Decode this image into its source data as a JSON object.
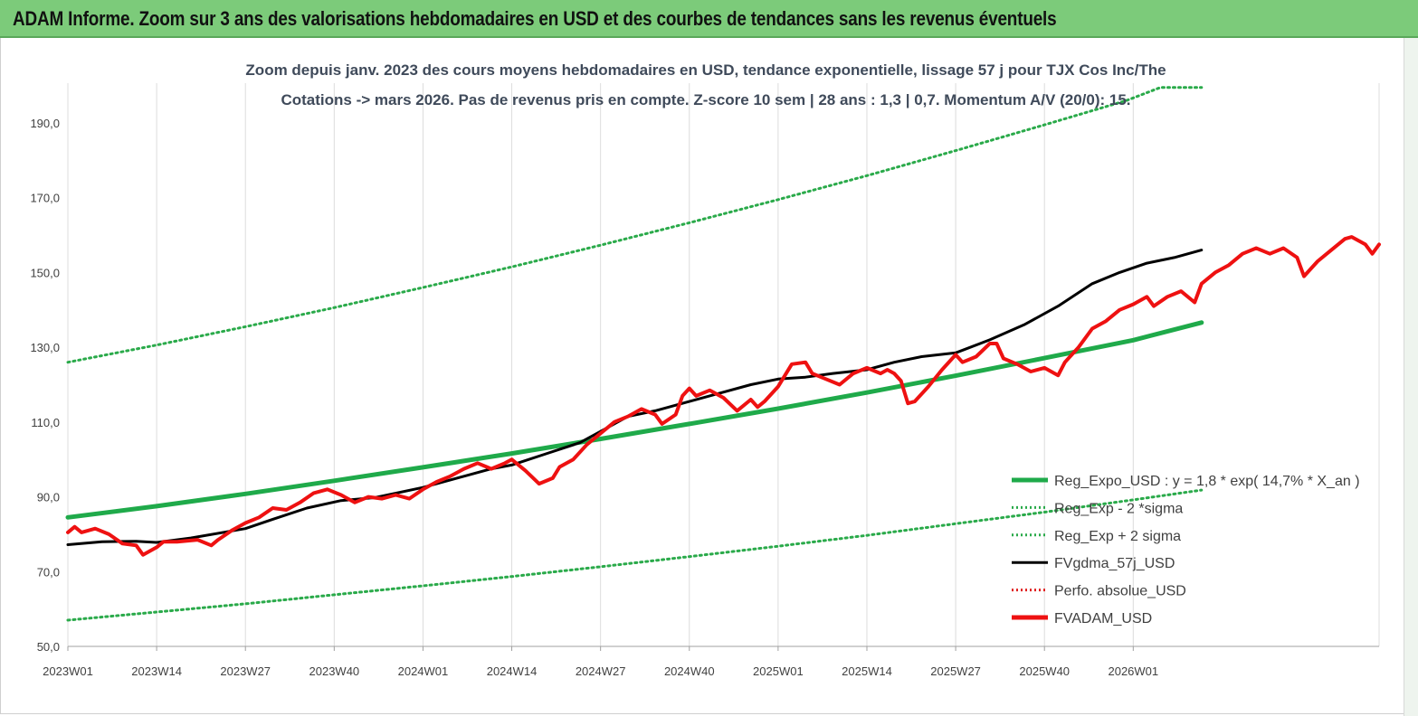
{
  "banner": {
    "title": "ADAM Informe. Zoom sur 3 ans des valorisations hebdomadaires en USD et des courbes de tendances sans les revenus éventuels"
  },
  "colors": {
    "banner_bg": "#7ccb7a",
    "reg_expo": "#1faa4a",
    "reg_band": "#2aaa4a",
    "fv57": "#000000",
    "perf": "#e02020",
    "fvadam": "#ee1111",
    "grid": "#dcdcdc"
  },
  "chart_data": {
    "type": "line",
    "title_lines": [
      "Zoom depuis janv. 2023 des cours moyens hebdomadaires en USD, tendance exponentielle, lissage 57 j pour TJX Cos Inc/The",
      "Cotations -> mars 2026. Pas de revenus pris en compte. Z-score 10 sem  | 28 ans : 1,3 | 0,7. Momentum A/V (20/0): 15."
    ],
    "x_tick_labels": [
      "2023W01",
      "2023W14",
      "2023W27",
      "2023W40",
      "2024W01",
      "2024W14",
      "2024W27",
      "2024W40",
      "2025W01",
      "2025W14",
      "2025W27",
      "2025W40",
      "2026W01"
    ],
    "y_tick_labels": [
      "50,0",
      "70,0",
      "90,0",
      "110,0",
      "130,0",
      "150,0",
      "170,0",
      "190,0"
    ],
    "ylim": [
      50,
      199
    ],
    "grid": "vertical",
    "legend_position": "right",
    "legend": [
      {
        "name": "Reg_Expo_USD : y = 1,8 * exp( 14,7% *  X_an )",
        "style": "thick-solid",
        "color": "#1faa4a"
      },
      {
        "name": "Reg_Exp - 2 *sigma",
        "style": "dotted",
        "color": "#2aaa4a"
      },
      {
        "name": "Reg_Exp + 2 sigma",
        "style": "dotted",
        "color": "#2aaa4a"
      },
      {
        "name": "FVgdma_57j_USD",
        "style": "solid",
        "color": "#000000"
      },
      {
        "name": "Perfo. absolue_USD",
        "style": "dotted",
        "color": "#e02020"
      },
      {
        "name": "FVADAM_USD",
        "style": "thick-solid",
        "color": "#ee1111"
      }
    ],
    "series": [
      {
        "name": "Reg_Expo_USD : y = 1,8 * exp( 14,7% *  X_an )",
        "points": [
          [
            0,
            84.5
          ],
          [
            13,
            87.5
          ],
          [
            26,
            90.8
          ],
          [
            39,
            94.3
          ],
          [
            52,
            97.9
          ],
          [
            65,
            101.6
          ],
          [
            78,
            105.5
          ],
          [
            91,
            109.5
          ],
          [
            104,
            113.6
          ],
          [
            117,
            117.9
          ],
          [
            130,
            122.4
          ],
          [
            143,
            127.1
          ],
          [
            156,
            131.9
          ],
          [
            166,
            136.6
          ]
        ]
      },
      {
        "name": "Reg_Exp - 2 *sigma",
        "points": [
          [
            0,
            57
          ],
          [
            13,
            59.2
          ],
          [
            26,
            61.4
          ],
          [
            39,
            63.8
          ],
          [
            52,
            66.2
          ],
          [
            65,
            68.7
          ],
          [
            78,
            71.3
          ],
          [
            91,
            74.0
          ],
          [
            104,
            76.8
          ],
          [
            117,
            79.7
          ],
          [
            130,
            82.8
          ],
          [
            143,
            85.9
          ],
          [
            156,
            89.2
          ],
          [
            166,
            91.8
          ]
        ]
      },
      {
        "name": "Reg_Exp + 2 sigma",
        "points": [
          [
            0,
            126
          ],
          [
            13,
            130.6
          ],
          [
            26,
            135.5
          ],
          [
            39,
            140.6
          ],
          [
            52,
            146.0
          ],
          [
            65,
            151.5
          ],
          [
            78,
            157.3
          ],
          [
            91,
            163.3
          ],
          [
            104,
            169.5
          ],
          [
            117,
            175.9
          ],
          [
            130,
            182.6
          ],
          [
            143,
            189.5
          ],
          [
            155,
            196
          ],
          [
            160,
            199.5
          ],
          [
            166,
            199.5
          ]
        ]
      },
      {
        "name": "FVgdma_57j_USD",
        "points": [
          [
            0,
            77.2
          ],
          [
            5,
            78.0
          ],
          [
            10,
            78.1
          ],
          [
            13,
            77.8
          ],
          [
            18,
            79.0
          ],
          [
            26,
            81.5
          ],
          [
            30,
            84.0
          ],
          [
            35,
            87.0
          ],
          [
            40,
            89.0
          ],
          [
            45,
            89.8
          ],
          [
            52,
            92.5
          ],
          [
            58,
            95.5
          ],
          [
            62,
            97.5
          ],
          [
            65,
            98.5
          ],
          [
            70,
            101.5
          ],
          [
            75,
            104.5
          ],
          [
            78,
            107.5
          ],
          [
            82,
            111.5
          ],
          [
            86,
            113.0
          ],
          [
            91,
            115.5
          ],
          [
            95,
            117.5
          ],
          [
            100,
            120.0
          ],
          [
            104,
            121.5
          ],
          [
            108,
            122.0
          ],
          [
            112,
            123.0
          ],
          [
            117,
            124.0
          ],
          [
            121,
            126.0
          ],
          [
            125,
            127.5
          ],
          [
            130,
            128.5
          ],
          [
            135,
            132.0
          ],
          [
            140,
            136.0
          ],
          [
            145,
            141.0
          ],
          [
            150,
            147.0
          ],
          [
            154,
            150.0
          ],
          [
            158,
            152.5
          ],
          [
            162,
            154.0
          ],
          [
            166,
            156.0
          ]
        ]
      },
      {
        "name": "FVADAM_USD",
        "points": [
          [
            0,
            80.5
          ],
          [
            1,
            82.0
          ],
          [
            2,
            80.5
          ],
          [
            4,
            81.5
          ],
          [
            6,
            80.0
          ],
          [
            8,
            77.5
          ],
          [
            10,
            77.0
          ],
          [
            11,
            74.5
          ],
          [
            13,
            76.5
          ],
          [
            14,
            78.0
          ],
          [
            16,
            78.0
          ],
          [
            19,
            78.5
          ],
          [
            21,
            77.0
          ],
          [
            22,
            78.5
          ],
          [
            24,
            81.0
          ],
          [
            26,
            83.0
          ],
          [
            28,
            84.5
          ],
          [
            30,
            87.0
          ],
          [
            32,
            86.5
          ],
          [
            34,
            88.5
          ],
          [
            36,
            91.0
          ],
          [
            38,
            92.0
          ],
          [
            40,
            90.5
          ],
          [
            42,
            88.5
          ],
          [
            44,
            90.0
          ],
          [
            46,
            89.5
          ],
          [
            48,
            90.5
          ],
          [
            50,
            89.5
          ],
          [
            52,
            92.0
          ],
          [
            54,
            94.0
          ],
          [
            56,
            95.5
          ],
          [
            58,
            97.5
          ],
          [
            60,
            99.0
          ],
          [
            62,
            97.5
          ],
          [
            64,
            99.0
          ],
          [
            65,
            100.0
          ],
          [
            67,
            97.0
          ],
          [
            69,
            93.5
          ],
          [
            71,
            95.0
          ],
          [
            72,
            98.0
          ],
          [
            74,
            100.0
          ],
          [
            76,
            104.0
          ],
          [
            78,
            107.0
          ],
          [
            80,
            110.0
          ],
          [
            82,
            111.5
          ],
          [
            84,
            113.5
          ],
          [
            86,
            112.0
          ],
          [
            87,
            109.5
          ],
          [
            89,
            112.0
          ],
          [
            90,
            117.0
          ],
          [
            91,
            119.0
          ],
          [
            92,
            117.0
          ],
          [
            94,
            118.5
          ],
          [
            96,
            116.5
          ],
          [
            98,
            113.0
          ],
          [
            100,
            116.0
          ],
          [
            101,
            114.0
          ],
          [
            102,
            115.5
          ],
          [
            104,
            119.5
          ],
          [
            106,
            125.5
          ],
          [
            108,
            126.0
          ],
          [
            109,
            123.0
          ],
          [
            111,
            121.5
          ],
          [
            113,
            120.0
          ],
          [
            115,
            123.0
          ],
          [
            117,
            124.5
          ],
          [
            119,
            123.0
          ],
          [
            120,
            124.0
          ],
          [
            121,
            123.0
          ],
          [
            122,
            121.0
          ],
          [
            123,
            115.0
          ],
          [
            124,
            115.5
          ],
          [
            126,
            119.5
          ],
          [
            128,
            124.0
          ],
          [
            130,
            128.0
          ],
          [
            131,
            126.0
          ],
          [
            133,
            127.5
          ],
          [
            135,
            131.0
          ],
          [
            136,
            131.0
          ],
          [
            137,
            127.0
          ],
          [
            139,
            125.5
          ],
          [
            141,
            123.5
          ],
          [
            143,
            124.5
          ],
          [
            145,
            122.5
          ],
          [
            146,
            126.0
          ],
          [
            148,
            130.0
          ],
          [
            150,
            135.0
          ],
          [
            152,
            137.0
          ],
          [
            154,
            140.0
          ],
          [
            156,
            141.5
          ],
          [
            158,
            143.5
          ],
          [
            159,
            141.0
          ],
          [
            161,
            143.5
          ],
          [
            163,
            145.0
          ],
          [
            165,
            142.0
          ],
          [
            166,
            147.0
          ],
          [
            168,
            150.0
          ],
          [
            170,
            152.0
          ],
          [
            172,
            155.0
          ],
          [
            174,
            156.5
          ],
          [
            176,
            155.0
          ],
          [
            178,
            156.5
          ],
          [
            180,
            154.0
          ],
          [
            181,
            149.0
          ],
          [
            183,
            153.0
          ],
          [
            185,
            156.0
          ],
          [
            187,
            159.0
          ],
          [
            188,
            159.5
          ],
          [
            190,
            157.5
          ],
          [
            191,
            155.0
          ],
          [
            192,
            157.5
          ]
        ]
      }
    ]
  }
}
